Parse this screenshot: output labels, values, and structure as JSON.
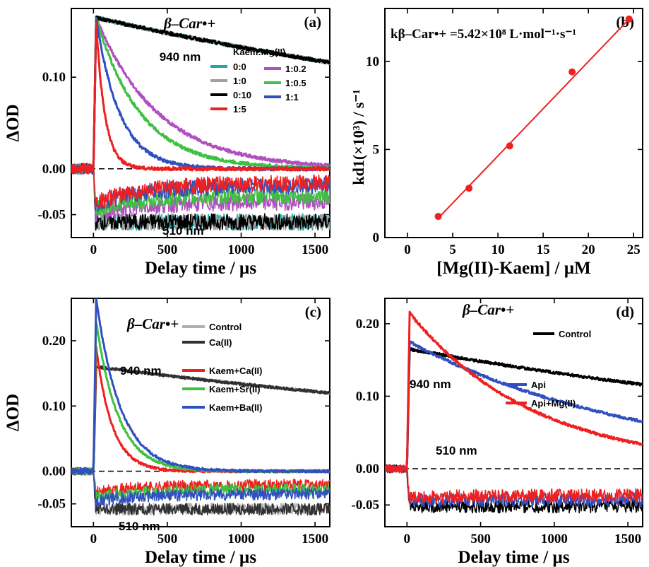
{
  "chart_data": [
    {
      "id": "a",
      "type": "line",
      "panel_label": "(a)",
      "title": "β–Car•+",
      "xlabel": "Delay time / µs",
      "ylabel": "ΔOD",
      "xlim": [
        -150,
        1600
      ],
      "ylim": [
        -0.075,
        0.175
      ],
      "xticks": [
        0,
        500,
        1000,
        1500
      ],
      "xtick_labels": [
        "0",
        "500",
        "1000",
        "1500"
      ],
      "yticks": [
        -0.05,
        0.0,
        0.1
      ],
      "ytick_labels": [
        "-0.05",
        "0.00",
        "0.10"
      ],
      "zero_line": true,
      "annotations": [
        "940 nm",
        "510 nm"
      ],
      "legend_title": "Kaem:Mg(II)",
      "legend_position": "top-right, two columns",
      "series": [
        {
          "name": "0:0",
          "color": "#20a8a8",
          "peak": 0.165,
          "tau": 4500,
          "neg": -0.058,
          "neg_rec": 0.0
        },
        {
          "name": "1:0",
          "color": "#a0a0a0",
          "peak": 0.165,
          "tau": 4500,
          "neg": -0.058,
          "neg_rec": 0.0
        },
        {
          "name": "0:10",
          "color": "#000000",
          "peak": 0.165,
          "tau": 4500,
          "neg": -0.058,
          "neg_rec": 0.0
        },
        {
          "name": "1:0.2",
          "color": "#b050c0",
          "peak": 0.165,
          "tau": 420,
          "neg": -0.05,
          "neg_rec": 0.28
        },
        {
          "name": "1:0.5",
          "color": "#40c040",
          "peak": 0.165,
          "tau": 300,
          "neg": -0.045,
          "neg_rec": 0.35
        },
        {
          "name": "1:1",
          "color": "#3050c0",
          "peak": 0.165,
          "tau": 160,
          "neg": -0.04,
          "neg_rec": 0.55
        },
        {
          "name": "1:5",
          "color": "#ee2020",
          "peak": 0.16,
          "tau": 60,
          "neg": -0.038,
          "neg_rec": 0.6
        }
      ]
    },
    {
      "id": "b",
      "type": "scatter",
      "panel_label": "(b)",
      "annotation": "kβ–Car•+ =5.42×10⁸ L·mol⁻¹·s⁻¹",
      "xlabel": "[Mg(II)-Kaem] / µM",
      "ylabel": "kd1(×10³) / s⁻¹",
      "xlim": [
        -2.5,
        26
      ],
      "ylim": [
        0,
        13
      ],
      "xticks": [
        0,
        5,
        10,
        15,
        20,
        25
      ],
      "xtick_labels": [
        "0",
        "5",
        "10",
        "15",
        "20",
        "25"
      ],
      "yticks": [
        0,
        5,
        10
      ],
      "ytick_labels": [
        "0",
        "5",
        "10"
      ],
      "color": "#ee2020",
      "x": [
        3.4,
        6.8,
        11.3,
        18.2,
        24.5
      ],
      "y": [
        1.2,
        2.8,
        5.2,
        9.4,
        12.4
      ],
      "fit": {
        "x": [
          3.4,
          24.5
        ],
        "y": [
          1.1,
          12.4
        ]
      }
    },
    {
      "id": "c",
      "type": "line",
      "panel_label": "(c)",
      "title": "β–Car•+",
      "xlabel": "Delay time / µs",
      "ylabel": "ΔOD",
      "xlim": [
        -150,
        1600
      ],
      "ylim": [
        -0.085,
        0.265
      ],
      "xticks": [
        0,
        500,
        1000,
        1500
      ],
      "xtick_labels": [
        "0",
        "500",
        "1000",
        "1500"
      ],
      "yticks": [
        -0.05,
        0.0,
        0.1,
        0.2
      ],
      "ytick_labels": [
        "-0.05",
        "0.00",
        "0.10",
        "0.20"
      ],
      "zero_line": true,
      "annotations": [
        "940 nm",
        "510 nm"
      ],
      "legend_position": "top-right",
      "series": [
        {
          "name": "Control",
          "color": "#b0b0b0",
          "peak": 0.16,
          "tau": 5500,
          "neg": -0.058,
          "neg_rec": 0.0
        },
        {
          "name": "Ca(II)",
          "color": "#303030",
          "peak": 0.16,
          "tau": 5500,
          "neg": -0.058,
          "neg_rec": 0.0
        },
        {
          "name": "Kaem+Ca(II)",
          "color": "#ee2020",
          "peak": 0.19,
          "tau": 110,
          "neg": -0.032,
          "neg_rec": 0.35
        },
        {
          "name": "Kaem+Sr(II)",
          "color": "#40c040",
          "peak": 0.23,
          "tau": 150,
          "neg": -0.04,
          "neg_rec": 0.3
        },
        {
          "name": "Kaem+Ba(II)",
          "color": "#3050c0",
          "peak": 0.265,
          "tau": 165,
          "neg": -0.046,
          "neg_rec": 0.25
        }
      ]
    },
    {
      "id": "d",
      "type": "line",
      "panel_label": "(d)",
      "title": "β–Car•+",
      "xlabel": "Delay time / µs",
      "ylabel": "",
      "xlim": [
        -150,
        1600
      ],
      "ylim": [
        -0.08,
        0.235
      ],
      "xticks": [
        0,
        500,
        1000,
        1500
      ],
      "xtick_labels": [
        "0",
        "500",
        "1000",
        "1500"
      ],
      "yticks": [
        -0.05,
        0.0,
        0.1,
        0.2
      ],
      "ytick_labels": [
        "-0.05",
        "0.00",
        "0.10",
        "0.20"
      ],
      "zero_line": true,
      "annotations": [
        "940 nm",
        "510 nm"
      ],
      "series": [
        {
          "name": "Control",
          "color": "#000000",
          "peak": 0.165,
          "tau": 4500,
          "neg": -0.052,
          "neg_rec": 0.0
        },
        {
          "name": "Api",
          "color": "#3050c0",
          "peak": 0.175,
          "tau": 1600,
          "neg": -0.045,
          "neg_rec": 0.05
        },
        {
          "name": "Api+Mg(II)",
          "color": "#ee2020",
          "peak": 0.215,
          "tau": 850,
          "neg": -0.04,
          "neg_rec": 0.08
        }
      ]
    }
  ]
}
